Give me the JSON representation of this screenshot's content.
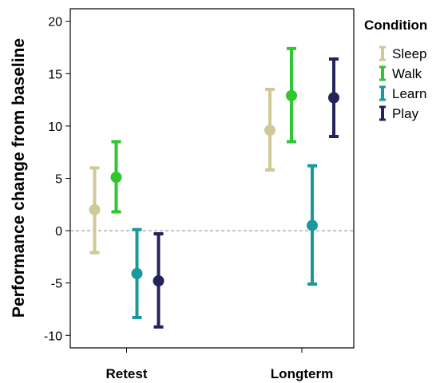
{
  "chart_data": {
    "type": "errorbar",
    "title": "",
    "ylabel": "Performance change from baseline",
    "xlabel": "",
    "categories": [
      "Retest",
      "Longterm"
    ],
    "ylim": [
      -11.2,
      21.2
    ],
    "yticks": [
      20,
      15,
      10,
      5,
      0,
      -5,
      -10
    ],
    "ytick_labels": [
      "20",
      "15",
      "10",
      "5",
      "0",
      "-5",
      "-10"
    ],
    "reference_line": 0,
    "legend": {
      "title": "Condition",
      "placement": "right"
    },
    "series": [
      {
        "name": "Sleep",
        "color": "#cfc998",
        "values": [
          {
            "mean": 2.0,
            "low": -2.1,
            "high": 6.0
          },
          {
            "mean": 9.6,
            "low": 5.8,
            "high": 13.5
          }
        ]
      },
      {
        "name": "Walk",
        "color": "#2fc62f",
        "values": [
          {
            "mean": 5.1,
            "low": 1.8,
            "high": 8.5
          },
          {
            "mean": 12.9,
            "low": 8.5,
            "high": 17.4
          }
        ]
      },
      {
        "name": "Learn",
        "color": "#19999a",
        "values": [
          {
            "mean": -4.1,
            "low": -8.3,
            "high": 0.1
          },
          {
            "mean": 0.5,
            "low": -5.1,
            "high": 6.2
          }
        ]
      },
      {
        "name": "Play",
        "color": "#24245a",
        "values": [
          {
            "mean": -4.8,
            "low": -9.2,
            "high": -0.3
          },
          {
            "mean": 12.7,
            "low": 9.0,
            "high": 16.4
          }
        ]
      }
    ]
  }
}
